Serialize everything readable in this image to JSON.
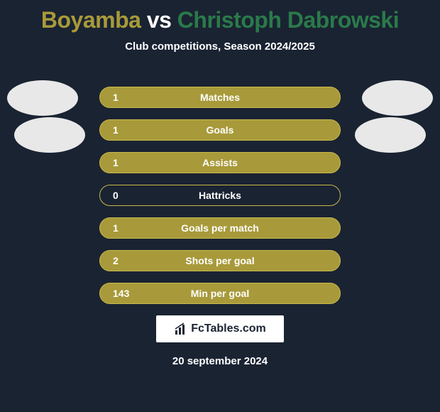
{
  "title": {
    "player1": "Boyamba",
    "vs": "vs",
    "player2": "Christoph Dabrowski",
    "player1_color": "#a89a3a",
    "vs_color": "#ffffff",
    "player2_color": "#2a7a4a"
  },
  "subtitle": "Club competitions, Season 2024/2025",
  "background_color": "#1a2332",
  "stats": [
    {
      "value": "1",
      "label": "Matches",
      "fill": "#a89a3a",
      "border": "#c8b84a"
    },
    {
      "value": "1",
      "label": "Goals",
      "fill": "#a89a3a",
      "border": "#c8b84a"
    },
    {
      "value": "1",
      "label": "Assists",
      "fill": "#a89a3a",
      "border": "#c8b84a"
    },
    {
      "value": "0",
      "label": "Hattricks",
      "fill": "#1a2332",
      "border": "#c8b84a"
    },
    {
      "value": "1",
      "label": "Goals per match",
      "fill": "#a89a3a",
      "border": "#c8b84a"
    },
    {
      "value": "2",
      "label": "Shots per goal",
      "fill": "#a89a3a",
      "border": "#c8b84a"
    },
    {
      "value": "143",
      "label": "Min per goal",
      "fill": "#a89a3a",
      "border": "#c8b84a"
    }
  ],
  "avatar_color": "#e8e8e8",
  "logo_text": "FcTables.com",
  "date": "20 september 2024"
}
